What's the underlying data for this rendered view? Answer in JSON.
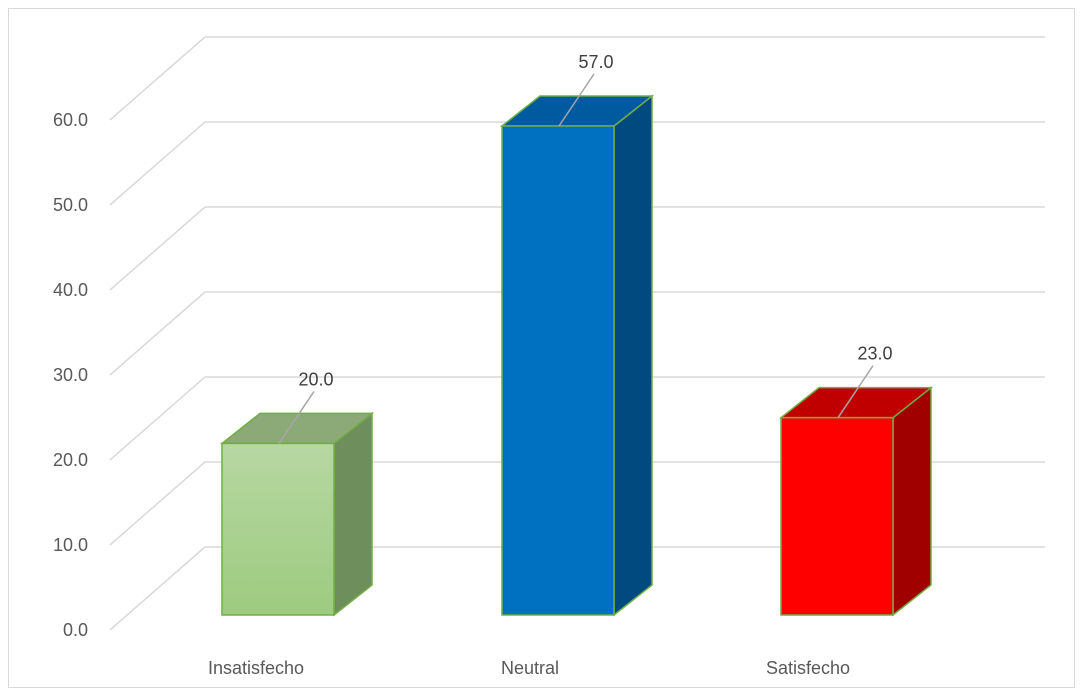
{
  "chart_data": {
    "type": "bar",
    "style": "3d-column",
    "categories": [
      "Insatisfecho",
      "Neutral",
      "Satisfecho"
    ],
    "values": [
      20.0,
      57.0,
      23.0
    ],
    "data_labels": [
      "20.0",
      "57.0",
      "23.0"
    ],
    "title": "",
    "xlabel": "",
    "ylabel": "",
    "ylim": [
      0,
      60
    ],
    "yticks": [
      "0.0",
      "10.0",
      "20.0",
      "30.0",
      "40.0",
      "50.0",
      "60.0"
    ],
    "grid": true,
    "legend": "none",
    "colors": {
      "Insatisfecho": {
        "front": "#a9d18e",
        "side": "#6e8f5c",
        "top": "#8caa78",
        "edge": "#70ad47"
      },
      "Neutral": {
        "front": "#0070c0",
        "side": "#004a80",
        "top": "#005aa0",
        "edge": "#70ad47"
      },
      "Satisfecho": {
        "front": "#ff0000",
        "side": "#a00000",
        "top": "#c00000",
        "edge": "#70ad47"
      }
    }
  }
}
